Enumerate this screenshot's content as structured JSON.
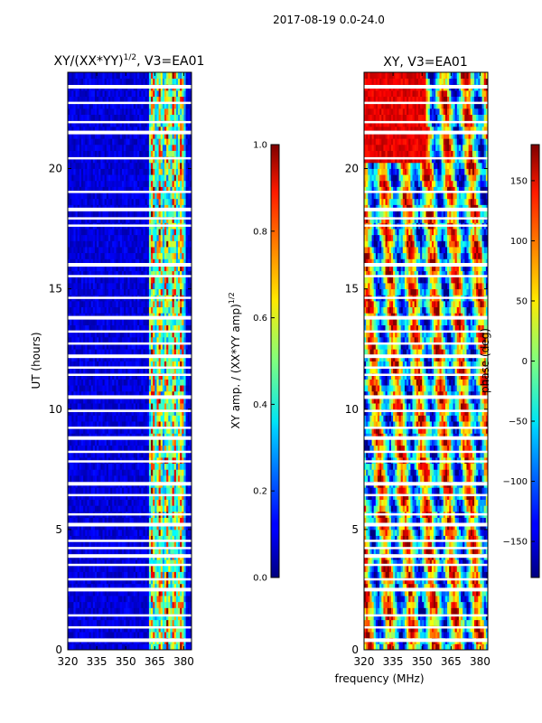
{
  "figure": {
    "suptitle": "2017-08-19 0.0-24.0",
    "xlabel_shared": "frequency (MHz)"
  },
  "chart_data": [
    {
      "type": "heatmap",
      "title_base": "XY/(XX*YY)",
      "title_exp": "1/2",
      "title_suffix": ", V3=EA01",
      "ylabel": "UT (hours)",
      "xlim": [
        320,
        384
      ],
      "ylim": [
        0,
        24
      ],
      "xticks": [
        320,
        335,
        350,
        365,
        380
      ],
      "yticks": [
        0,
        5,
        10,
        15,
        20
      ],
      "colorbar": {
        "label_base": "XY amp. / (XX*YY amp)",
        "label_exp": "1/2",
        "range": [
          0.0,
          1.0
        ],
        "ticks": [
          "0.0",
          "0.2",
          "0.4",
          "0.6",
          "0.8",
          "1.0"
        ]
      }
    },
    {
      "type": "heatmap",
      "title": "XY, V3=EA01",
      "ylabel": "",
      "xlim": [
        320,
        384
      ],
      "ylim": [
        0,
        24
      ],
      "xticks": [
        320,
        335,
        350,
        365,
        380
      ],
      "yticks": [
        0,
        5,
        10,
        15,
        20
      ],
      "colorbar": {
        "label": "phase (deg)",
        "range": [
          -180,
          180
        ],
        "ticks": [
          "−150",
          "−100",
          "−50",
          "0",
          "50",
          "100",
          "150"
        ]
      }
    }
  ],
  "data_gaps_hours": [
    23.4,
    22.7,
    21.9,
    21.5,
    20.4,
    19.0,
    18.3,
    17.9,
    17.6,
    16.0,
    15.5,
    14.6,
    13.8,
    13.2,
    12.7,
    12.2,
    11.7,
    11.4,
    10.5,
    9.9,
    9.2,
    8.8,
    8.2,
    7.8,
    6.9,
    6.4,
    5.6,
    5.2,
    4.5,
    4.2,
    3.9,
    3.5,
    2.9,
    2.5,
    1.4,
    0.9,
    0.4
  ]
}
